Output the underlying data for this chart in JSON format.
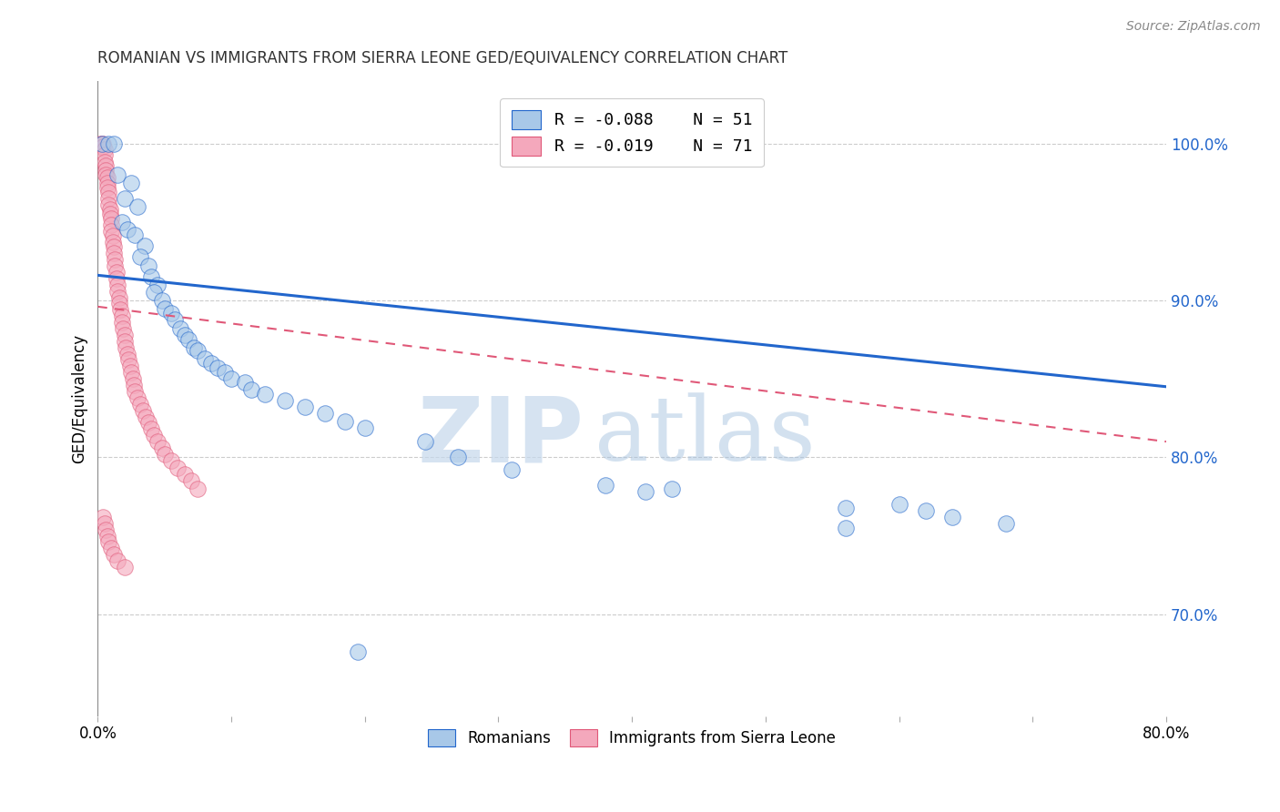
{
  "title": "ROMANIAN VS IMMIGRANTS FROM SIERRA LEONE GED/EQUIVALENCY CORRELATION CHART",
  "source": "Source: ZipAtlas.com",
  "ylabel": "GED/Equivalency",
  "yticks": [
    0.7,
    0.8,
    0.9,
    1.0
  ],
  "ytick_labels": [
    "70.0%",
    "80.0%",
    "90.0%",
    "100.0%"
  ],
  "xlim": [
    0.0,
    0.8
  ],
  "ylim": [
    0.635,
    1.04
  ],
  "legend_blue_R": "R = -0.088",
  "legend_blue_N": "N = 51",
  "legend_pink_R": "R = -0.019",
  "legend_pink_N": "N = 71",
  "blue_color": "#a8c8e8",
  "pink_color": "#f4a8bc",
  "trendline_blue_color": "#2266cc",
  "trendline_pink_color": "#e05878",
  "blue_scatter": [
    [
      0.003,
      1.0
    ],
    [
      0.008,
      1.0
    ],
    [
      0.012,
      1.0
    ],
    [
      0.015,
      0.98
    ],
    [
      0.02,
      0.965
    ],
    [
      0.018,
      0.95
    ],
    [
      0.025,
      0.975
    ],
    [
      0.022,
      0.945
    ],
    [
      0.03,
      0.96
    ],
    [
      0.028,
      0.942
    ],
    [
      0.035,
      0.935
    ],
    [
      0.032,
      0.928
    ],
    [
      0.038,
      0.922
    ],
    [
      0.04,
      0.915
    ],
    [
      0.045,
      0.91
    ],
    [
      0.042,
      0.905
    ],
    [
      0.048,
      0.9
    ],
    [
      0.05,
      0.895
    ],
    [
      0.055,
      0.892
    ],
    [
      0.058,
      0.888
    ],
    [
      0.062,
      0.882
    ],
    [
      0.065,
      0.878
    ],
    [
      0.068,
      0.875
    ],
    [
      0.072,
      0.87
    ],
    [
      0.075,
      0.868
    ],
    [
      0.08,
      0.863
    ],
    [
      0.085,
      0.86
    ],
    [
      0.09,
      0.857
    ],
    [
      0.095,
      0.854
    ],
    [
      0.1,
      0.85
    ],
    [
      0.11,
      0.848
    ],
    [
      0.115,
      0.843
    ],
    [
      0.125,
      0.84
    ],
    [
      0.14,
      0.836
    ],
    [
      0.155,
      0.832
    ],
    [
      0.17,
      0.828
    ],
    [
      0.185,
      0.823
    ],
    [
      0.2,
      0.819
    ],
    [
      0.245,
      0.81
    ],
    [
      0.27,
      0.8
    ],
    [
      0.31,
      0.792
    ],
    [
      0.38,
      0.782
    ],
    [
      0.41,
      0.778
    ],
    [
      0.43,
      0.78
    ],
    [
      0.56,
      0.768
    ],
    [
      0.6,
      0.77
    ],
    [
      0.62,
      0.766
    ],
    [
      0.64,
      0.762
    ],
    [
      0.68,
      0.758
    ],
    [
      0.56,
      0.755
    ],
    [
      0.195,
      0.676
    ]
  ],
  "pink_scatter": [
    [
      0.002,
      1.0
    ],
    [
      0.003,
      1.0
    ],
    [
      0.004,
      1.0
    ],
    [
      0.004,
      0.998
    ],
    [
      0.005,
      0.996
    ],
    [
      0.005,
      0.993
    ],
    [
      0.005,
      0.988
    ],
    [
      0.006,
      0.986
    ],
    [
      0.006,
      0.983
    ],
    [
      0.006,
      0.98
    ],
    [
      0.007,
      0.978
    ],
    [
      0.007,
      0.975
    ],
    [
      0.007,
      0.972
    ],
    [
      0.008,
      0.969
    ],
    [
      0.008,
      0.965
    ],
    [
      0.008,
      0.961
    ],
    [
      0.009,
      0.958
    ],
    [
      0.009,
      0.955
    ],
    [
      0.01,
      0.952
    ],
    [
      0.01,
      0.948
    ],
    [
      0.01,
      0.944
    ],
    [
      0.011,
      0.941
    ],
    [
      0.011,
      0.937
    ],
    [
      0.012,
      0.934
    ],
    [
      0.012,
      0.93
    ],
    [
      0.013,
      0.926
    ],
    [
      0.013,
      0.922
    ],
    [
      0.014,
      0.918
    ],
    [
      0.014,
      0.914
    ],
    [
      0.015,
      0.91
    ],
    [
      0.015,
      0.906
    ],
    [
      0.016,
      0.902
    ],
    [
      0.016,
      0.898
    ],
    [
      0.017,
      0.894
    ],
    [
      0.018,
      0.89
    ],
    [
      0.018,
      0.886
    ],
    [
      0.019,
      0.882
    ],
    [
      0.02,
      0.878
    ],
    [
      0.02,
      0.874
    ],
    [
      0.021,
      0.87
    ],
    [
      0.022,
      0.866
    ],
    [
      0.023,
      0.862
    ],
    [
      0.024,
      0.858
    ],
    [
      0.025,
      0.854
    ],
    [
      0.026,
      0.85
    ],
    [
      0.027,
      0.846
    ],
    [
      0.028,
      0.842
    ],
    [
      0.03,
      0.838
    ],
    [
      0.032,
      0.834
    ],
    [
      0.034,
      0.83
    ],
    [
      0.036,
      0.826
    ],
    [
      0.038,
      0.822
    ],
    [
      0.04,
      0.818
    ],
    [
      0.042,
      0.814
    ],
    [
      0.045,
      0.81
    ],
    [
      0.048,
      0.806
    ],
    [
      0.05,
      0.802
    ],
    [
      0.055,
      0.798
    ],
    [
      0.06,
      0.793
    ],
    [
      0.065,
      0.789
    ],
    [
      0.07,
      0.785
    ],
    [
      0.075,
      0.78
    ],
    [
      0.004,
      0.762
    ],
    [
      0.005,
      0.758
    ],
    [
      0.006,
      0.754
    ],
    [
      0.007,
      0.75
    ],
    [
      0.008,
      0.746
    ],
    [
      0.01,
      0.742
    ],
    [
      0.012,
      0.738
    ],
    [
      0.015,
      0.734
    ],
    [
      0.02,
      0.73
    ]
  ],
  "blue_trendline_x": [
    0.0,
    0.8
  ],
  "blue_trendline_y": [
    0.916,
    0.845
  ],
  "pink_trendline_x": [
    0.0,
    0.8
  ],
  "pink_trendline_y": [
    0.896,
    0.81
  ],
  "watermark_zip": "ZIP",
  "watermark_atlas": "atlas",
  "background_color": "#ffffff",
  "grid_color": "#cccccc"
}
